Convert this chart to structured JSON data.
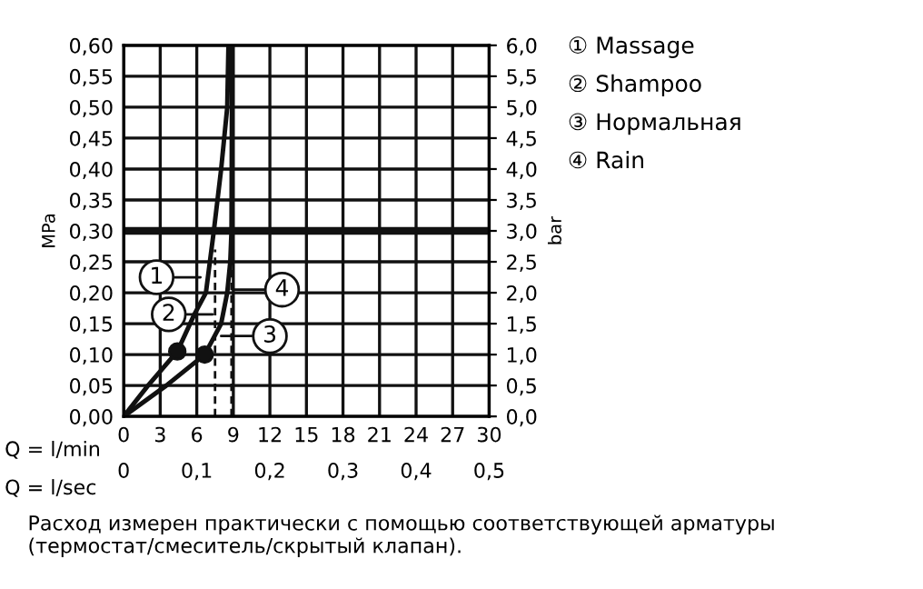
{
  "chart_data": {
    "type": "line",
    "xlabel": "Q = l/min",
    "ylabel": "MPa",
    "y2label": "bar",
    "x2label": "Q = l/sec",
    "xlim": [
      0,
      30
    ],
    "xticks": [
      0,
      3,
      6,
      9,
      12,
      15,
      18,
      21,
      24,
      27,
      30
    ],
    "ylim": [
      0,
      0.6
    ],
    "yticks": [
      {
        "value": 0,
        "label": "0,00"
      },
      {
        "value": 0.05,
        "label": "0,05"
      },
      {
        "value": 0.1,
        "label": "0,10"
      },
      {
        "value": 0.15,
        "label": "0,15"
      },
      {
        "value": 0.2,
        "label": "0,20"
      },
      {
        "value": 0.25,
        "label": "0,25"
      },
      {
        "value": 0.3,
        "label": "0,30"
      },
      {
        "value": 0.35,
        "label": "0,35"
      },
      {
        "value": 0.4,
        "label": "0,40"
      },
      {
        "value": 0.45,
        "label": "0,45"
      },
      {
        "value": 0.5,
        "label": "0,50"
      },
      {
        "value": 0.55,
        "label": "0,55"
      },
      {
        "value": 0.6,
        "label": "0,60"
      }
    ],
    "y2lim": [
      0,
      6
    ],
    "y2ticks": [
      {
        "value": 0,
        "label": "0,0"
      },
      {
        "value": 0.5,
        "label": "0,5"
      },
      {
        "value": 1,
        "label": "1,0"
      },
      {
        "value": 1.5,
        "label": "1,5"
      },
      {
        "value": 2,
        "label": "2,0"
      },
      {
        "value": 2.5,
        "label": "2,5"
      },
      {
        "value": 3,
        "label": "3,0"
      },
      {
        "value": 3.5,
        "label": "3,5"
      },
      {
        "value": 4,
        "label": "4,0"
      },
      {
        "value": 4.5,
        "label": "4,5"
      },
      {
        "value": 5,
        "label": "5,0"
      },
      {
        "value": 5.5,
        "label": "5,5"
      },
      {
        "value": 6,
        "label": "6,0"
      }
    ],
    "x2lim": [
      0,
      0.5
    ],
    "x2ticks": [
      0,
      {
        "value": 0.1,
        "label": "0,1"
      },
      {
        "value": 0.2,
        "label": "0,2"
      },
      {
        "value": 0.3,
        "label": "0,3"
      },
      {
        "value": 0.4,
        "label": "0,4"
      },
      {
        "value": 0.5,
        "label": "0,5"
      }
    ],
    "grid": true,
    "series": [
      {
        "color": "#111111",
        "x": [
          0,
          2,
          4.4,
          5.8,
          6.75,
          7.4,
          8.0,
          8.5,
          8.6
        ],
        "values": [
          0,
          0.05,
          0.105,
          0.165,
          0.2,
          0.3,
          0.4,
          0.5,
          0.6
        ]
      },
      {
        "color": "#111111",
        "x": [
          0,
          3.5,
          6.65,
          8.0,
          8.5,
          8.75,
          8.85,
          8.9
        ],
        "values": [
          0,
          0.05,
          0.1,
          0.15,
          0.2,
          0.25,
          0.3,
          0.6
        ]
      },
      {
        "type": "scatter",
        "color": "#111111",
        "x": [
          4.4,
          6.65
        ],
        "values": [
          0.105,
          0.1
        ]
      }
    ],
    "ref_lines": [
      {
        "axis": "y",
        "value": 0.3,
        "color": "#111111",
        "line_style": "solid"
      },
      {
        "axis": "x",
        "value": 7.5,
        "color": "#111111",
        "line_style": "dashed"
      },
      {
        "axis": "x",
        "value": 8.85,
        "color": "#111111",
        "line_style": "dashed"
      }
    ],
    "annotations": [
      {
        "text": "1",
        "x": 6.3,
        "y": 0.225
      },
      {
        "text": "2",
        "x": 7.3,
        "y": 0.165
      },
      {
        "text": "4",
        "x": 9.0,
        "y": 0.205
      },
      {
        "text": "3",
        "x": 8.0,
        "y": 0.13
      },
      "① Massage",
      "② Shampoo",
      "③ Нормальная",
      "④ Rain",
      "Расход измерен практически с помощью соответствующей арматуры (термостат/смеситель/скрытый клапан)."
    ]
  }
}
